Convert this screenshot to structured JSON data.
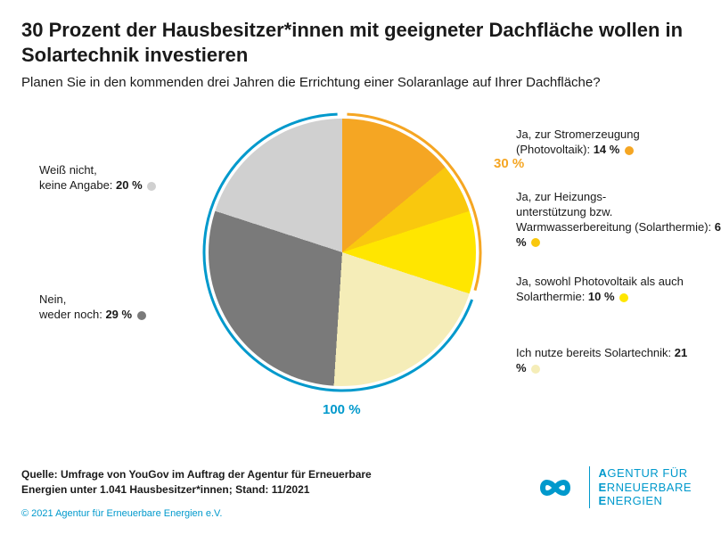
{
  "title": "30 Prozent der Hausbesitzer*innen mit geeigneter Dachfläche wollen in Solartechnik investieren",
  "subtitle": "Planen Sie in den kommenden drei Jahren die Errichtung einer Solaranlage auf Ihrer Dachfläche?",
  "chart": {
    "type": "pie",
    "ring_color_full": "#0099cc",
    "ring_color_highlight": "#f5a623",
    "highlight_label": "30 %",
    "highlight_color": "#f5a623",
    "full_label": "100 %",
    "full_color": "#0099cc",
    "slices": [
      {
        "label": "Ja, zur Stromerzeugung (Photovoltaik):",
        "value": 14,
        "valtext": "14 %",
        "color": "#f5a623"
      },
      {
        "label": "Ja, zur Heizungs-\nunterstützung bzw. Warmwasserbereitung (Solarthermie):",
        "value": 6,
        "valtext": "6 %",
        "color": "#f9c80e"
      },
      {
        "label": "Ja, sowohl Photovoltaik als auch Solarthermie:",
        "value": 10,
        "valtext": "10 %",
        "color": "#ffe600"
      },
      {
        "label": "Ich nutze bereits Solartechnik:",
        "value": 21,
        "valtext": "21 %",
        "color": "#f5edb8"
      },
      {
        "label": "Nein,\nweder noch:",
        "value": 29,
        "valtext": "29 %",
        "color": "#7a7a7a"
      },
      {
        "label": "Weiß nicht,\nkeine Angabe:",
        "value": 20,
        "valtext": "20 %",
        "color": "#d0d0d0"
      }
    ]
  },
  "source": "Quelle: Umfrage von YouGov im Auftrag der Agentur für Erneuerbare Energien unter 1.041 Hausbesitzer*innen; Stand: 11/2021",
  "copyright": "© 2021 Agentur für Erneuerbare Energien e.V.",
  "logo": {
    "line1": "AGENTUR FÜR",
    "line2": "ERNEUERBARE",
    "line3": "ENERGIEN"
  }
}
